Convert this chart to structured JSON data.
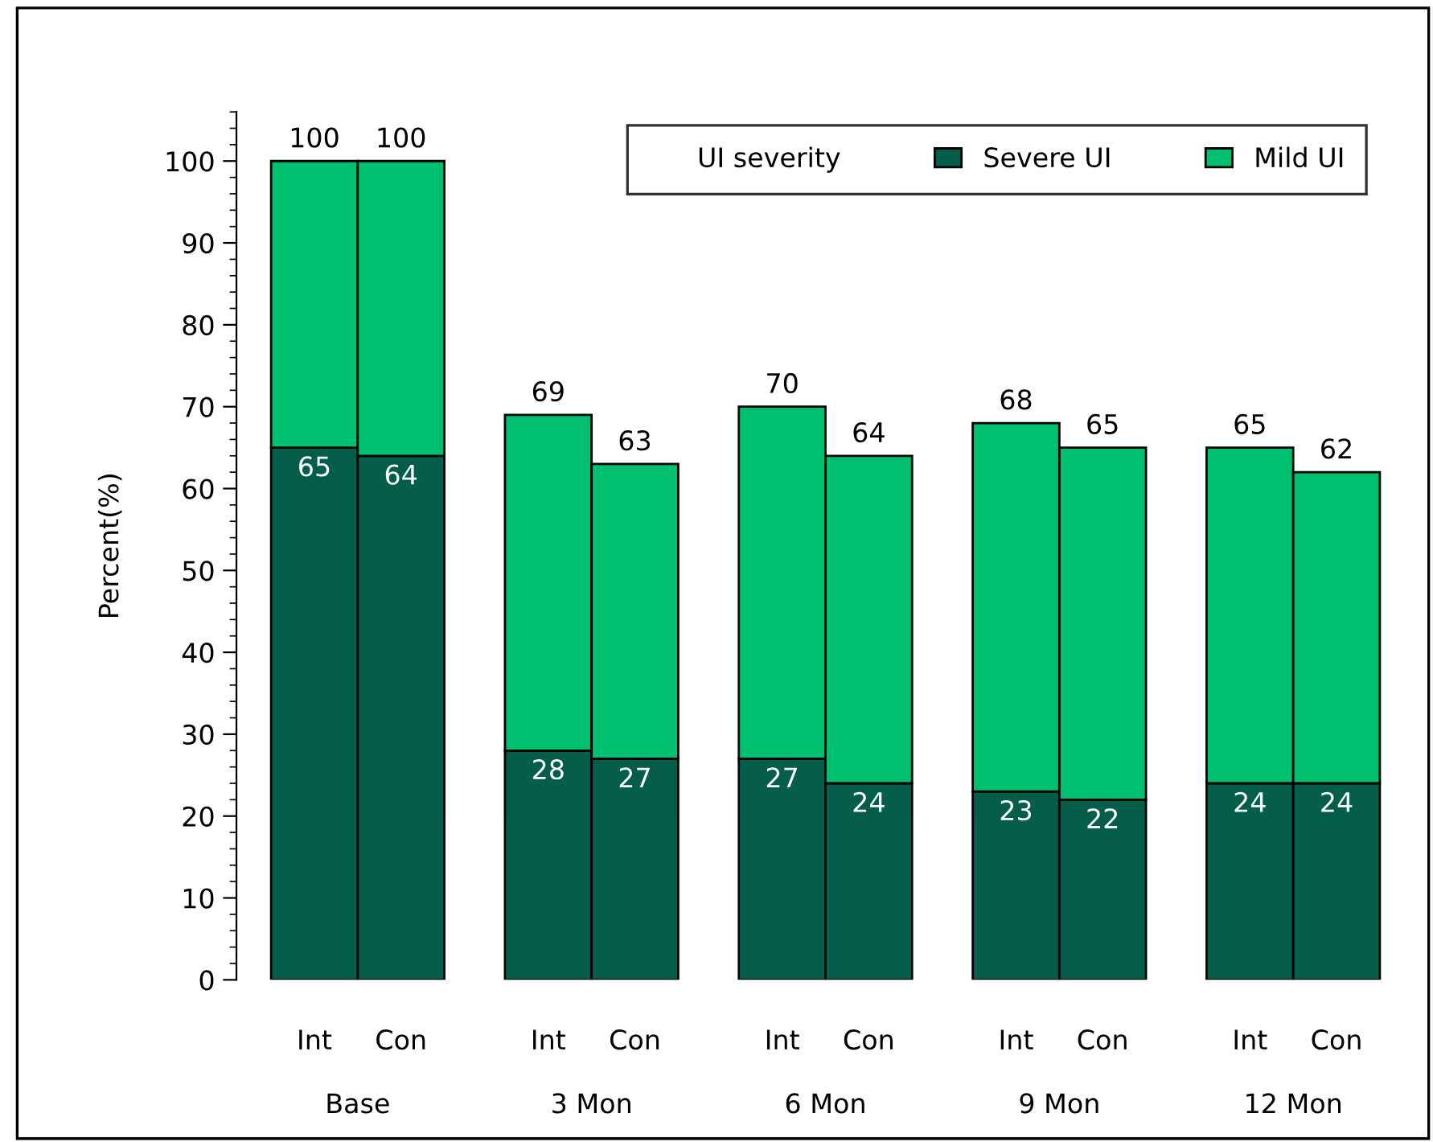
{
  "chart_data": {
    "type": "bar",
    "stacked": true,
    "ylabel": "Percent(%)",
    "legend_title": "UI severity",
    "legend": "top right",
    "categories": [
      "Int",
      "Con",
      "Int",
      "Con",
      "Int",
      "Con",
      "Int",
      "Con",
      "Int",
      "Con"
    ],
    "annotations": [
      "Base",
      "3 Mon",
      "6 Mon",
      "9 Mon",
      "12 Mon"
    ],
    "series": [
      {
        "name": "Severe UI",
        "color": "#055e4a",
        "values": [
          65,
          64,
          28,
          27,
          27,
          24,
          23,
          22,
          24,
          24
        ],
        "value_labels": [
          "65",
          "64",
          "28",
          "27",
          "27",
          "24",
          "23",
          "22",
          "24",
          "24"
        ]
      },
      {
        "name": "Mild UI",
        "color": "#00c070",
        "values": [
          35,
          36,
          41,
          36,
          43,
          40,
          45,
          43,
          41,
          38
        ]
      }
    ],
    "totals": [
      "100",
      "100",
      "69",
      "63",
      "70",
      "64",
      "68",
      "65",
      "65",
      "62"
    ],
    "ylim": [
      0,
      106
    ],
    "yticks": [
      0,
      10,
      20,
      30,
      40,
      50,
      60,
      70,
      80,
      90,
      100
    ],
    "grid": false
  }
}
